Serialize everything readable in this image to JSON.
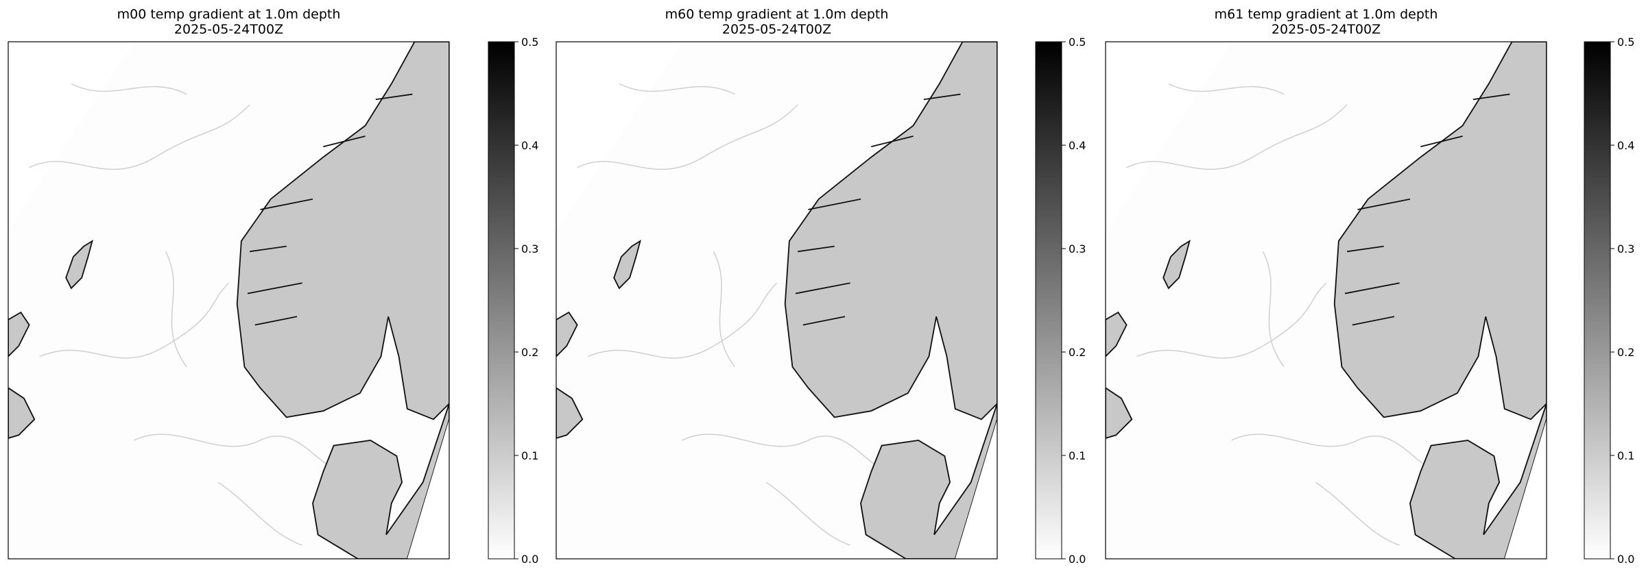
{
  "panels": [
    {
      "title": "m00 temp gradient at 1.0m depth",
      "subtitle": "2025-05-24T00Z",
      "colorbar": {
        "clim": [
          0,
          0.5
        ],
        "ticks": [
          {
            "value": 0,
            "label": "0.0"
          },
          0.1,
          0.2,
          0.3,
          0.4,
          0.5
        ],
        "colors": [
          "#ffffff",
          "#000000"
        ]
      }
    },
    {
      "title": "m60 temp gradient at 1.0m depth",
      "subtitle": "2025-05-24T00Z",
      "colorbar": {
        "clim": [
          0,
          0.5
        ],
        "ticks": [
          {
            "value": 0,
            "label": "0.0"
          },
          0.1,
          0.2,
          0.3,
          0.4,
          0.5
        ],
        "colors": [
          "#ffffff",
          "#000000"
        ]
      }
    },
    {
      "title": "m61 temp gradient at 1.0m depth",
      "subtitle": "2025-05-24T00Z",
      "colorbar": {
        "clim": [
          0,
          0.5
        ],
        "ticks": [
          {
            "value": 0,
            "label": "0.0"
          },
          0.1,
          0.2,
          0.3,
          0.4,
          0.5
        ],
        "colors": [
          "#ffffff",
          "#000000"
        ]
      }
    }
  ]
}
